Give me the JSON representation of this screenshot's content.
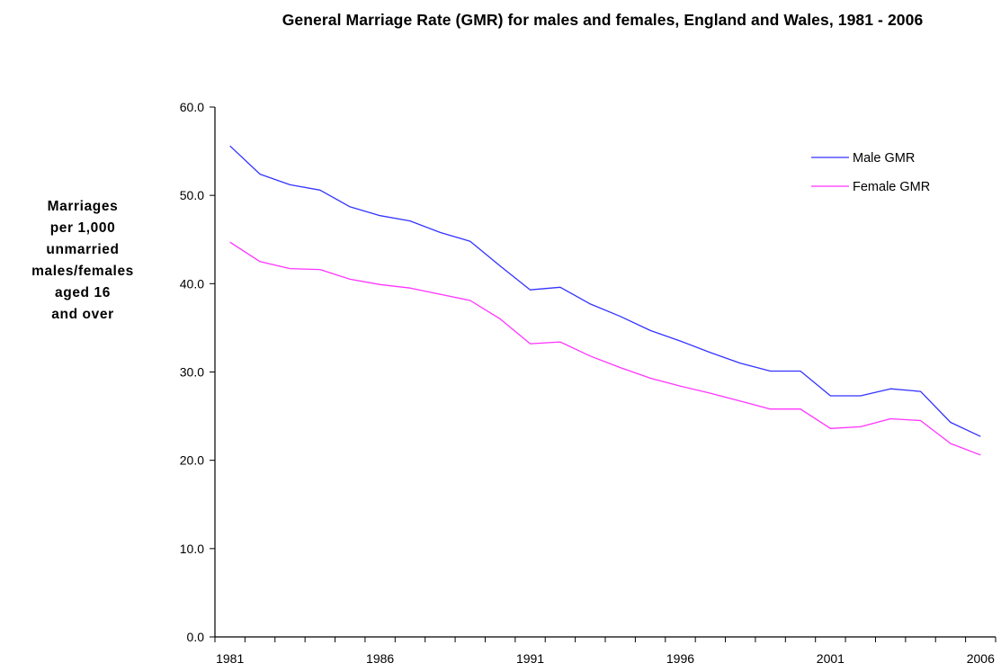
{
  "chart_data": {
    "type": "line",
    "title": "General Marriage Rate (GMR) for males and females, England and Wales,\n1981 - 2006",
    "ylabel": "Marriages\nper 1,000\nunmarried\nmales/females\naged 16\nand over",
    "xlabel": "",
    "x": [
      1981,
      1982,
      1983,
      1984,
      1985,
      1986,
      1987,
      1988,
      1989,
      1990,
      1991,
      1992,
      1993,
      1994,
      1995,
      1996,
      1997,
      1998,
      1999,
      2000,
      2001,
      2002,
      2003,
      2004,
      2005,
      2006
    ],
    "x_tick_labels": [
      "1981",
      "1986",
      "1991",
      "1996",
      "2001",
      "2006"
    ],
    "ylim": [
      0,
      60
    ],
    "y_tick_labels": [
      "0.0",
      "10.0",
      "20.0",
      "30.0",
      "40.0",
      "50.0",
      "60.0"
    ],
    "series": [
      {
        "name": "Male GMR",
        "color": "#3333ff",
        "values": [
          55.6,
          52.4,
          51.2,
          50.6,
          48.7,
          47.7,
          47.1,
          45.8,
          44.8,
          42.0,
          39.3,
          39.6,
          37.7,
          36.3,
          34.7,
          33.5,
          32.2,
          31.0,
          30.1,
          30.1,
          27.3,
          27.3,
          28.1,
          27.8,
          24.3,
          22.7
        ]
      },
      {
        "name": "Female GMR",
        "color": "#ff33ff",
        "values": [
          44.7,
          42.5,
          41.7,
          41.6,
          40.5,
          39.9,
          39.5,
          38.8,
          38.1,
          36.0,
          33.2,
          33.4,
          31.8,
          30.5,
          29.3,
          28.4,
          27.6,
          26.7,
          25.8,
          25.8,
          23.6,
          23.8,
          24.7,
          24.5,
          21.9,
          20.6
        ]
      }
    ],
    "legend_position": "top-right",
    "grid": false
  }
}
